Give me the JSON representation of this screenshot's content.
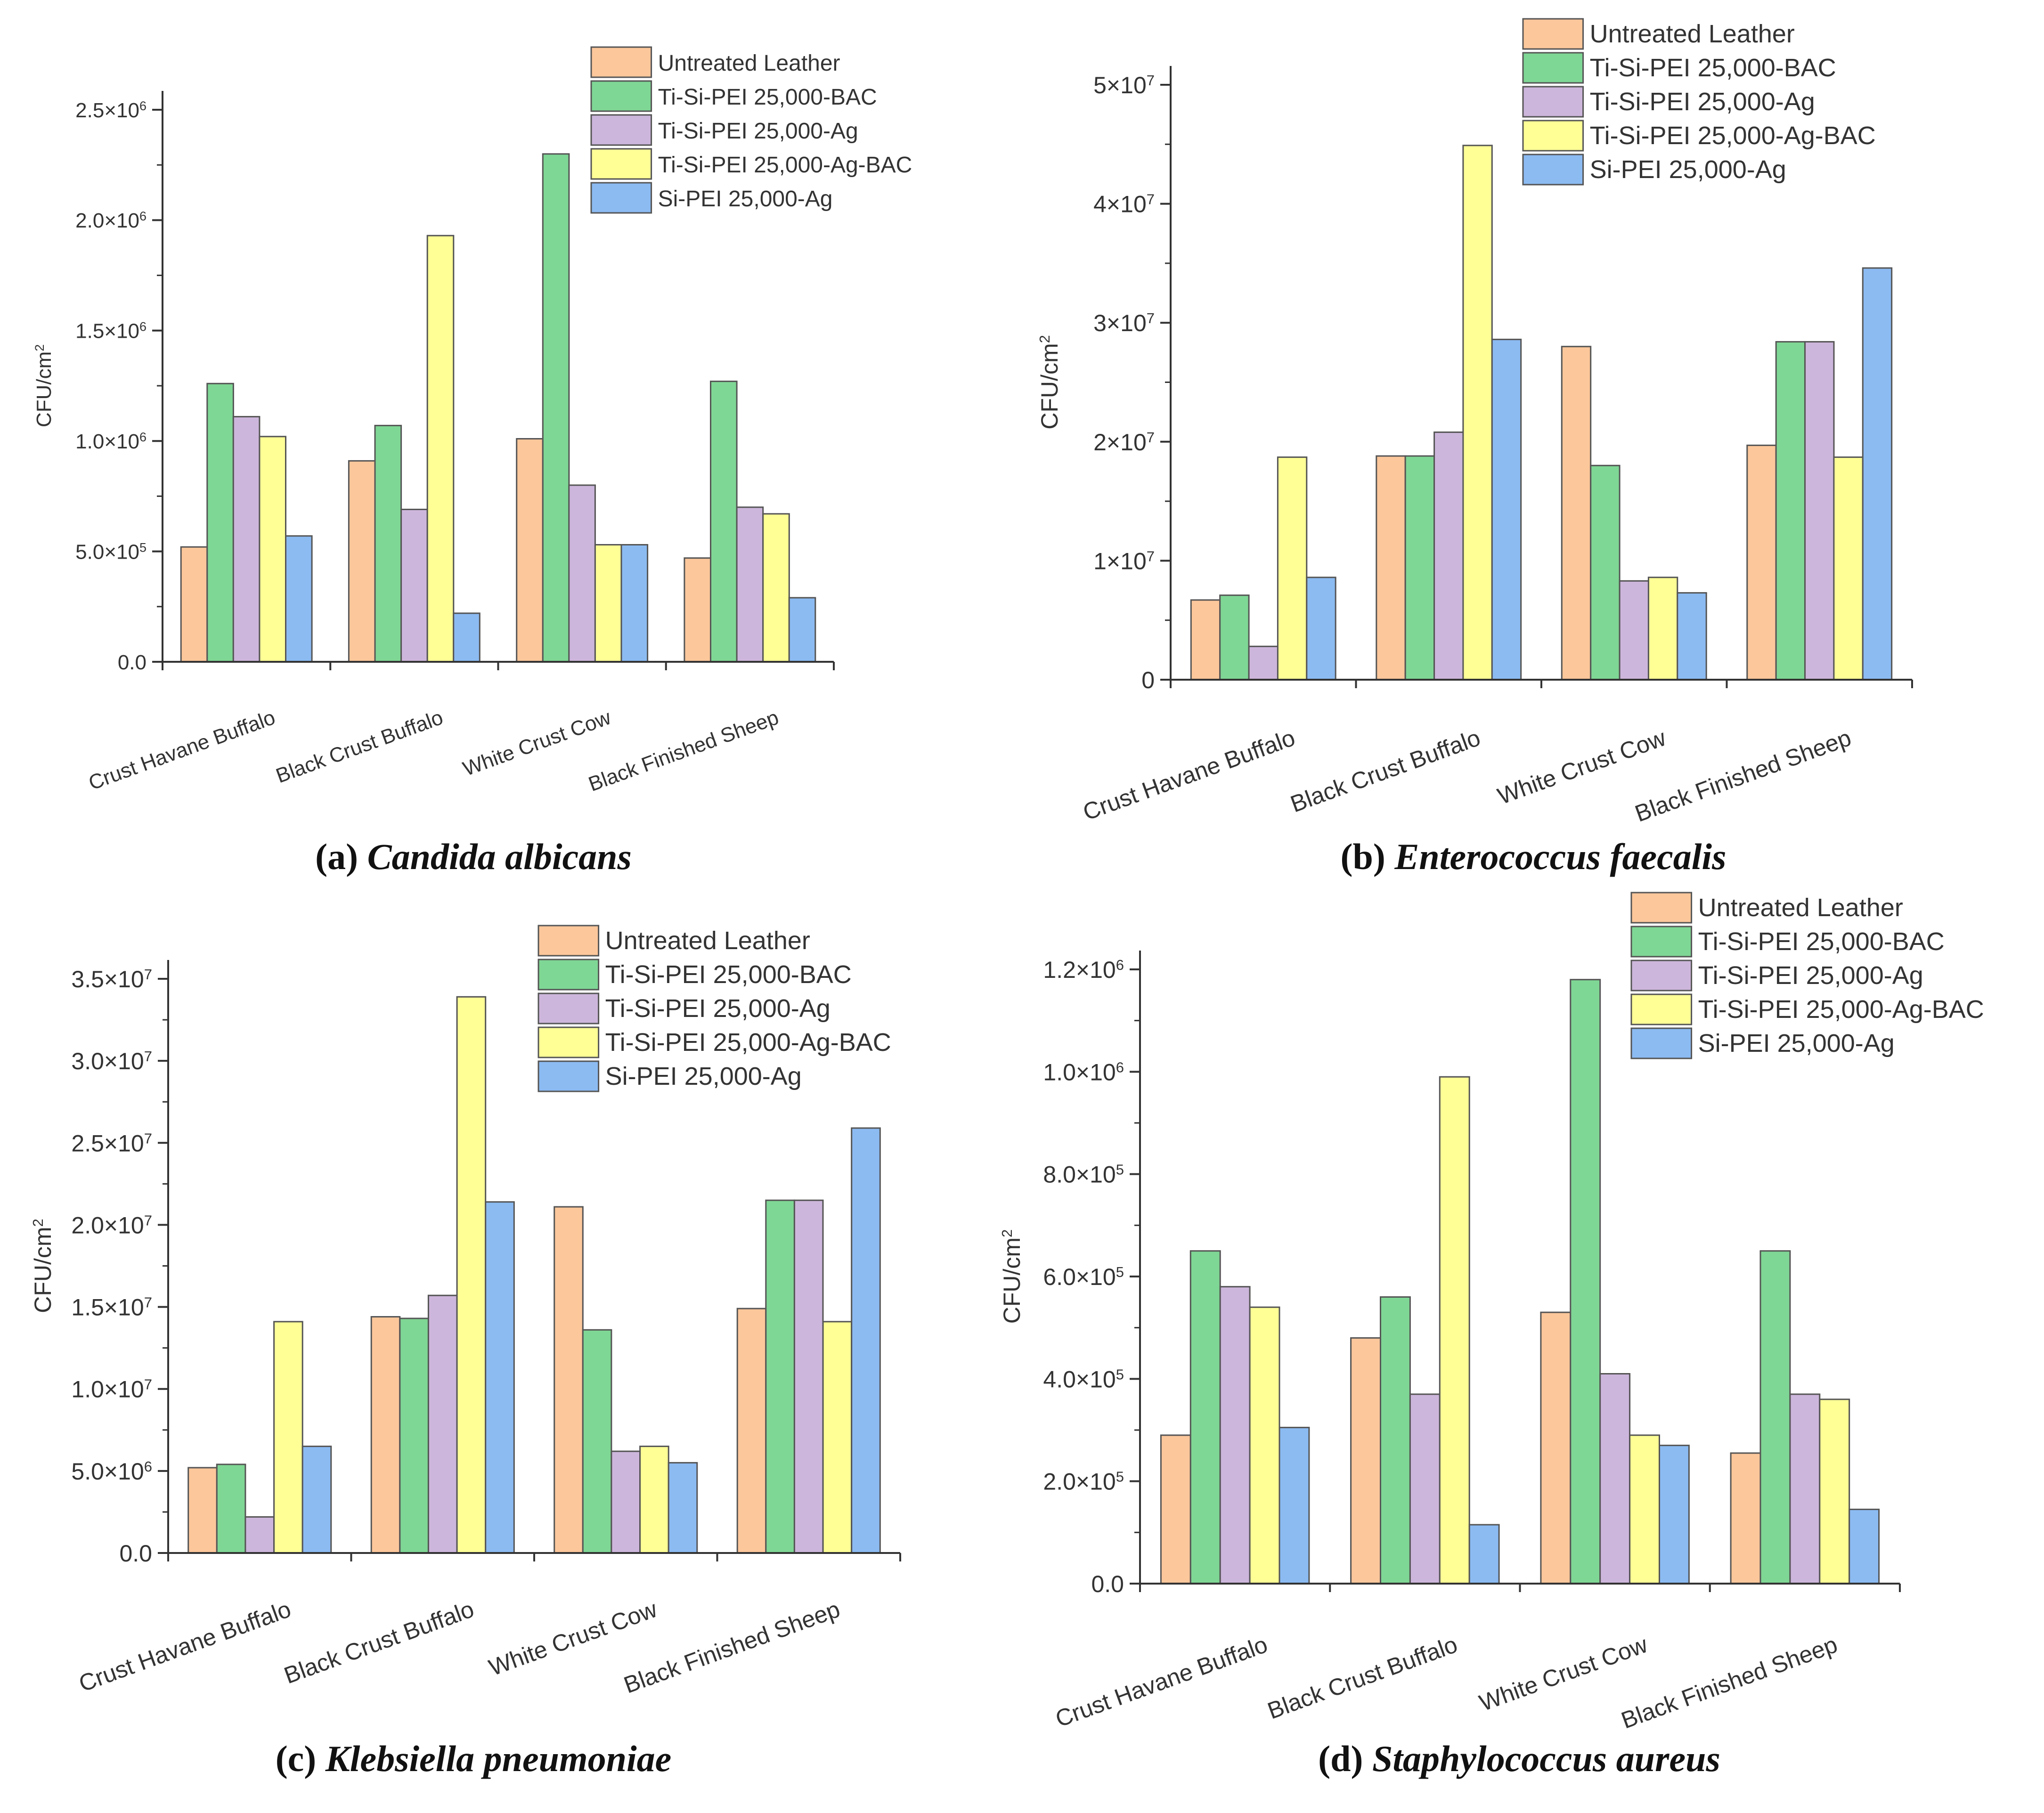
{
  "colors": {
    "Untreated Leather": "#fcc79b",
    "Ti-Si-PEI 25,000-BAC": "#7fd795",
    "Ti-Si-PEI 25,000-Ag": "#cdb6dc",
    "Ti-Si-PEI 25,000-Ag-BAC": "#ffff96",
    "Si-PEI 25,000-Ag": "#8cbbf2"
  },
  "chart_data": [
    {
      "id": "a",
      "type": "bar",
      "caption_prefix": "(a)",
      "caption_organism": "Candida albicans",
      "ylabel": "CFU/cm",
      "ylabel_sup": "2",
      "ylim": [
        0,
        2500000
      ],
      "yticks": [
        {
          "value": 0,
          "label": "0.0"
        },
        {
          "value": 500000,
          "label": "5.0×10",
          "exp": "5"
        },
        {
          "value": 1000000,
          "label": "1.0×10",
          "exp": "6"
        },
        {
          "value": 1500000,
          "label": "1.5×10",
          "exp": "6"
        },
        {
          "value": 2000000,
          "label": "2.0×10",
          "exp": "6"
        },
        {
          "value": 2500000,
          "label": "2.5×10",
          "exp": "6"
        }
      ],
      "categories": [
        "Crust Havane Buffalo",
        "Black Crust Buffalo",
        "White Crust Cow",
        "Black Finished Sheep"
      ],
      "series": [
        {
          "name": "Untreated Leather",
          "values": [
            520000,
            910000,
            1010000,
            470000
          ]
        },
        {
          "name": "Ti-Si-PEI 25,000-BAC",
          "values": [
            1260000,
            1070000,
            2300000,
            1270000
          ]
        },
        {
          "name": "Ti-Si-PEI 25,000-Ag",
          "values": [
            1110000,
            690000,
            800000,
            700000
          ]
        },
        {
          "name": "Ti-Si-PEI 25,000-Ag-BAC",
          "values": [
            1020000,
            1930000,
            530000,
            670000
          ]
        },
        {
          "name": "Si-PEI 25,000-Ag",
          "values": [
            570000,
            220000,
            530000,
            290000
          ]
        }
      ],
      "legend_position": "top-right"
    },
    {
      "id": "b",
      "type": "bar",
      "caption_prefix": "(b)",
      "caption_organism": "Enterococcus faecalis",
      "ylabel": "CFU/cm",
      "ylabel_sup": "2",
      "ylim": [
        0,
        50000000
      ],
      "yticks": [
        {
          "value": 0,
          "label": "0"
        },
        {
          "value": 10000000,
          "label": "1×10",
          "exp": "7"
        },
        {
          "value": 20000000,
          "label": "2×10",
          "exp": "7"
        },
        {
          "value": 30000000,
          "label": "3×10",
          "exp": "7"
        },
        {
          "value": 40000000,
          "label": "4×10",
          "exp": "7"
        },
        {
          "value": 50000000,
          "label": "5×10",
          "exp": "7"
        }
      ],
      "categories": [
        "Crust Havane Buffalo",
        "Black Crust Buffalo",
        "White Crust Cow",
        "Black Finished Sheep"
      ],
      "series": [
        {
          "name": "Untreated Leather",
          "values": [
            6700000,
            18800000,
            28000000,
            19700000
          ]
        },
        {
          "name": "Ti-Si-PEI 25,000-BAC",
          "values": [
            7100000,
            18800000,
            18000000,
            28400000
          ]
        },
        {
          "name": "Ti-Si-PEI 25,000-Ag",
          "values": [
            2800000,
            20800000,
            8300000,
            28400000
          ]
        },
        {
          "name": "Ti-Si-PEI 25,000-Ag-BAC",
          "values": [
            18700000,
            44900000,
            8600000,
            18700000
          ]
        },
        {
          "name": "Si-PEI 25,000-Ag",
          "values": [
            8600000,
            28600000,
            7300000,
            34600000
          ]
        }
      ],
      "legend_position": "top-right"
    },
    {
      "id": "c",
      "type": "bar",
      "caption_prefix": "(c)",
      "caption_organism": "Klebsiella pneumoniae",
      "ylabel": "CFU/cm",
      "ylabel_sup": "2",
      "ylim": [
        0,
        35000000
      ],
      "yticks": [
        {
          "value": 0,
          "label": "0.0"
        },
        {
          "value": 5000000,
          "label": "5.0×10",
          "exp": "6"
        },
        {
          "value": 10000000,
          "label": "1.0×10",
          "exp": "7"
        },
        {
          "value": 15000000,
          "label": "1.5×10",
          "exp": "7"
        },
        {
          "value": 20000000,
          "label": "2.0×10",
          "exp": "7"
        },
        {
          "value": 25000000,
          "label": "2.5×10",
          "exp": "7"
        },
        {
          "value": 30000000,
          "label": "3.0×10",
          "exp": "7"
        },
        {
          "value": 35000000,
          "label": "3.5×10",
          "exp": "7"
        }
      ],
      "categories": [
        "Crust Havane Buffalo",
        "Black Crust Buffalo",
        "White Crust Cow",
        "Black Finished Sheep"
      ],
      "series": [
        {
          "name": "Untreated Leather",
          "values": [
            5200000,
            14400000,
            21100000,
            14900000
          ]
        },
        {
          "name": "Ti-Si-PEI 25,000-BAC",
          "values": [
            5400000,
            14300000,
            13600000,
            21500000
          ]
        },
        {
          "name": "Ti-Si-PEI 25,000-Ag",
          "values": [
            2200000,
            15700000,
            6200000,
            21500000
          ]
        },
        {
          "name": "Ti-Si-PEI 25,000-Ag-BAC",
          "values": [
            14100000,
            33900000,
            6500000,
            14100000
          ]
        },
        {
          "name": "Si-PEI 25,000-Ag",
          "values": [
            6500000,
            21400000,
            5500000,
            25900000
          ]
        }
      ],
      "legend_position": "top-right"
    },
    {
      "id": "d",
      "type": "bar",
      "caption_prefix": "(d)",
      "caption_organism": "Staphylococcus aureus",
      "ylabel": "CFU/cm",
      "ylabel_sup": "2",
      "ylim": [
        0,
        1200000
      ],
      "yticks": [
        {
          "value": 0,
          "label": "0.0"
        },
        {
          "value": 200000,
          "label": "2.0×10",
          "exp": "5"
        },
        {
          "value": 400000,
          "label": "4.0×10",
          "exp": "5"
        },
        {
          "value": 600000,
          "label": "6.0×10",
          "exp": "5"
        },
        {
          "value": 800000,
          "label": "8.0×10",
          "exp": "5"
        },
        {
          "value": 1000000,
          "label": "1.0×10",
          "exp": "6"
        },
        {
          "value": 1200000,
          "label": "1.2×10",
          "exp": "6"
        }
      ],
      "categories": [
        "Crust Havane Buffalo",
        "Black Crust Buffalo",
        "White Crust Cow",
        "Black Finished Sheep"
      ],
      "series": [
        {
          "name": "Untreated Leather",
          "values": [
            290000,
            480000,
            530000,
            255000
          ]
        },
        {
          "name": "Ti-Si-PEI 25,000-BAC",
          "values": [
            650000,
            560000,
            1180000,
            650000
          ]
        },
        {
          "name": "Ti-Si-PEI 25,000-Ag",
          "values": [
            580000,
            370000,
            410000,
            370000
          ]
        },
        {
          "name": "Ti-Si-PEI 25,000-Ag-BAC",
          "values": [
            540000,
            990000,
            290000,
            360000
          ]
        },
        {
          "name": "Si-PEI 25,000-Ag",
          "values": [
            305000,
            115000,
            270000,
            145000
          ]
        }
      ],
      "legend_position": "top-right"
    }
  ]
}
